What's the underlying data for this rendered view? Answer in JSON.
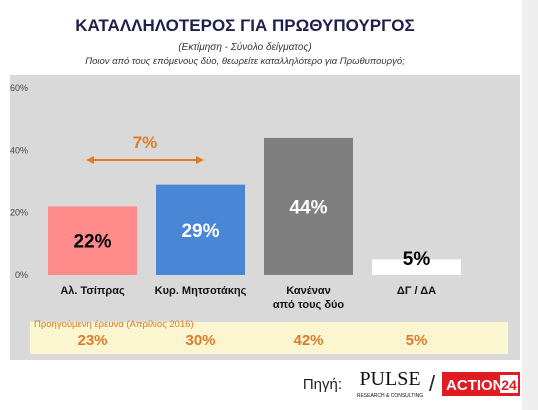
{
  "chart_data": {
    "type": "bar",
    "title": "ΚΑΤΑΛΛΗΛΟΤΕΡΟΣ ΓΙΑ ΠΡΩΘΥΠΟΥΡΓΟΣ",
    "subtitle": "(Εκτίμηση - Σύνολο δείγματος)",
    "question": "Ποιον από τους επόμενους δύο, θεωρείτε καταλληλότερο για Πρωθυπουργό;",
    "categories": [
      "Αλ. Τσίπρας",
      "Κυρ. Μητσοτάκης",
      "Κανέναν\nαπό τους δύο",
      "ΔΓ / ΔΑ"
    ],
    "values": [
      22,
      29,
      44,
      5
    ],
    "value_labels": [
      "22%",
      "29%",
      "44%",
      "5%"
    ],
    "colors": [
      "#ff8b8b",
      "#4a86d6",
      "#7f7f7f",
      "#ffffff"
    ],
    "ylim": [
      0,
      60
    ],
    "yticks": [
      {
        "value": 0,
        "label": "0%"
      },
      {
        "value": 20,
        "label": "20%"
      },
      {
        "value": 40,
        "label": "40%"
      },
      {
        "value": 60,
        "label": "60%"
      }
    ],
    "annotation": "7%",
    "previous_survey": {
      "label": "Προηγούμενη έρευνα (Απρίλιος 2016)",
      "cells": [
        "23%",
        "30%",
        "42%",
        "5%"
      ]
    },
    "source": {
      "label": "Πηγή:",
      "logo1": "PULSE",
      "logo1_sub": "RESEARCH & CONSULTING",
      "separator": "/",
      "logo2": "ACTION",
      "logo2_num": "24"
    }
  }
}
